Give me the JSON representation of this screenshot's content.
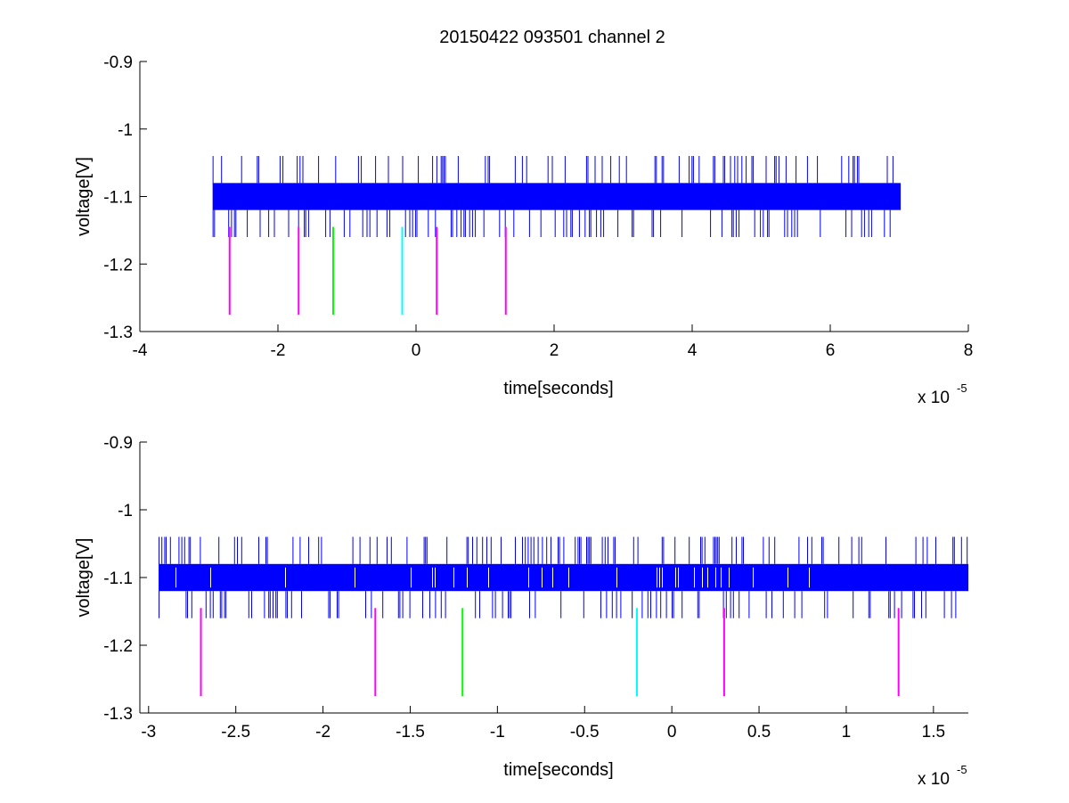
{
  "title": "20150422 093501 channel 2",
  "chart_data": [
    {
      "type": "line",
      "title": "20150422 093501 channel 2",
      "xlabel": "time[seconds]",
      "ylabel": "voltage[V]",
      "x_exponent_label": "x 10",
      "x_exponent": "-5",
      "xlim": [
        -4e-05,
        8e-05
      ],
      "ylim": [
        -1.3,
        -0.9
      ],
      "x_ticks": [
        -4e-05,
        -2e-05,
        0,
        2e-05,
        4e-05,
        6e-05,
        8e-05
      ],
      "x_tick_labels": [
        "-4",
        "-2",
        "0",
        "2",
        "4",
        "6",
        "8"
      ],
      "y_ticks": [
        -0.9,
        -1,
        -1.1,
        -1.2,
        -1.3
      ],
      "y_tick_labels": [
        "-0.9",
        "-1",
        "-1.1",
        "-1.2",
        "-1.3"
      ],
      "grid": false,
      "signal": {
        "name": "",
        "color": "#0000ff",
        "x_range": [
          -2.94e-05,
          7.02e-05
        ],
        "levels": [
          -1.16,
          -1.12,
          -1.08,
          -1.04
        ],
        "dense_band": [
          -1.12,
          -1.08
        ]
      },
      "markers": [
        {
          "x": -2.7e-05,
          "y_range": [
            -1.275,
            -1.145
          ],
          "color": "#ff00ff"
        },
        {
          "x": -1.7e-05,
          "y_range": [
            -1.275,
            -1.145
          ],
          "color": "#ff00ff"
        },
        {
          "x": -1.2e-05,
          "y_range": [
            -1.275,
            -1.145
          ],
          "color": "#00ff00"
        },
        {
          "x": -2e-06,
          "y_range": [
            -1.275,
            -1.145
          ],
          "color": "#00ffff"
        },
        {
          "x": 3e-06,
          "y_range": [
            -1.275,
            -1.145
          ],
          "color": "#ff00ff"
        },
        {
          "x": 1.3e-05,
          "y_range": [
            -1.275,
            -1.145
          ],
          "color": "#ff00ff"
        }
      ]
    },
    {
      "type": "line",
      "title": "",
      "xlabel": "time[seconds]",
      "ylabel": "voltage[V]",
      "x_exponent_label": "x 10",
      "x_exponent": "-5",
      "xlim": [
        -3.05e-05,
        1.7e-05
      ],
      "ylim": [
        -1.3,
        -0.9
      ],
      "x_ticks": [
        -3e-05,
        -2.5e-05,
        -2e-05,
        -1.5e-05,
        -1e-05,
        -5e-06,
        0,
        5e-06,
        1e-05,
        1.5e-05
      ],
      "x_tick_labels": [
        "-3",
        "-2.5",
        "-2",
        "-1.5",
        "-1",
        "-0.5",
        "0",
        "0.5",
        "1",
        "1.5"
      ],
      "y_ticks": [
        -0.9,
        -1,
        -1.1,
        -1.2,
        -1.3
      ],
      "y_tick_labels": [
        "-0.9",
        "-1",
        "-1.1",
        "-1.2",
        "-1.3"
      ],
      "grid": false,
      "signal": {
        "name": "",
        "color": "#0000ff",
        "x_range": [
          -2.94e-05,
          1.7e-05
        ],
        "levels": [
          -1.16,
          -1.12,
          -1.08,
          -1.04
        ],
        "dense_band": [
          -1.12,
          -1.08
        ]
      },
      "markers": [
        {
          "x": -2.7e-05,
          "y_range": [
            -1.275,
            -1.145
          ],
          "color": "#ff00ff"
        },
        {
          "x": -1.7e-05,
          "y_range": [
            -1.275,
            -1.145
          ],
          "color": "#ff00ff"
        },
        {
          "x": -1.2e-05,
          "y_range": [
            -1.275,
            -1.145
          ],
          "color": "#00ff00"
        },
        {
          "x": -2e-06,
          "y_range": [
            -1.275,
            -1.145
          ],
          "color": "#00ffff"
        },
        {
          "x": 3e-06,
          "y_range": [
            -1.275,
            -1.145
          ],
          "color": "#ff00ff"
        },
        {
          "x": 1.3e-05,
          "y_range": [
            -1.275,
            -1.145
          ],
          "color": "#ff00ff"
        }
      ]
    }
  ]
}
